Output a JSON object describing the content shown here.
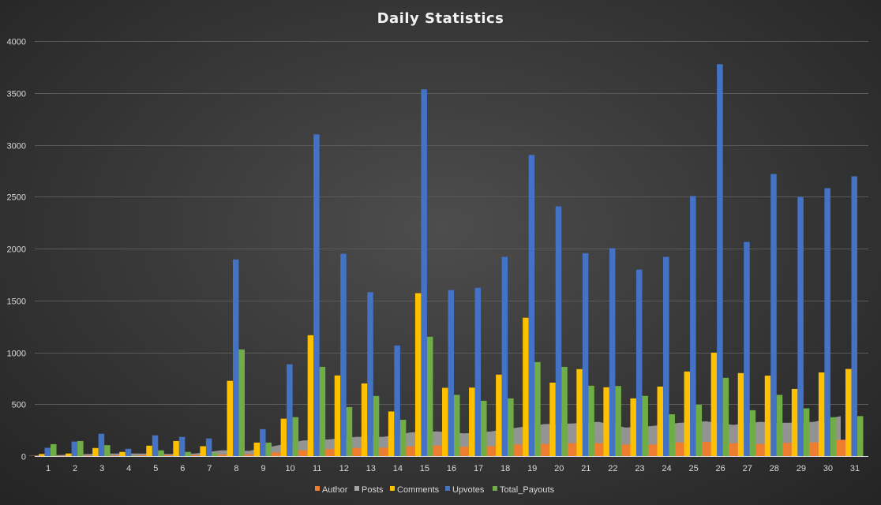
{
  "chart_data": {
    "type": "bar",
    "title": "Daily Statistics",
    "xlabel": "",
    "ylabel": "",
    "ylim": [
      0,
      4000
    ],
    "yticks": [
      "0",
      "500",
      "1000",
      "1500",
      "2000",
      "2500",
      "3000",
      "3500",
      "4000"
    ],
    "grid": true,
    "legend_position": "bottom",
    "categories": [
      "1",
      "2",
      "3",
      "4",
      "5",
      "6",
      "7",
      "8",
      "9",
      "10",
      "11",
      "12",
      "13",
      "14",
      "15",
      "16",
      "17",
      "18",
      "19",
      "20",
      "21",
      "22",
      "23",
      "24",
      "25",
      "26",
      "27",
      "28",
      "29",
      "30",
      "31"
    ],
    "series": [
      {
        "name": "Author",
        "color": "#ed7d31",
        "kind": "bar",
        "values": [
          3,
          4,
          5,
          6,
          8,
          10,
          10,
          15,
          17,
          36,
          56,
          68,
          79,
          81,
          94,
          102,
          91,
          96,
          112,
          117,
          124,
          124,
          112,
          112,
          132,
          137,
          124,
          117,
          128,
          132,
          157
        ]
      },
      {
        "name": "Posts",
        "color": "#a5a5a5",
        "kind": "area",
        "values": [
          5,
          10,
          20,
          25,
          25,
          20,
          25,
          56,
          50,
          100,
          150,
          162,
          185,
          185,
          228,
          238,
          219,
          238,
          276,
          309,
          314,
          330,
          275,
          290,
          320,
          335,
          300,
          330,
          320,
          330,
          385
        ]
      },
      {
        "name": "Comments",
        "color": "#ffc000",
        "kind": "bar",
        "values": [
          20,
          25,
          78,
          40,
          100,
          145,
          95,
          725,
          130,
          360,
          1165,
          777,
          700,
          430,
          1570,
          658,
          660,
          785,
          1333,
          708,
          838,
          663,
          556,
          670,
          815,
          997,
          800,
          775,
          647,
          806,
          840
        ]
      },
      {
        "name": "Upvotes",
        "color": "#4472c4",
        "kind": "bar",
        "values": [
          80,
          140,
          215,
          70,
          200,
          185,
          170,
          1895,
          260,
          885,
          3100,
          1950,
          1580,
          1066,
          3534,
          1600,
          1622,
          1920,
          2902,
          2407,
          1955,
          2003,
          1797,
          1920,
          2506,
          3777,
          2064,
          2719,
          2498,
          2582,
          2696
        ]
      },
      {
        "name": "Total_Payouts",
        "color": "#70ad47",
        "kind": "bar",
        "values": [
          115,
          145,
          105,
          5,
          55,
          40,
          30,
          1028,
          130,
          375,
          860,
          472,
          579,
          350,
          1150,
          590,
          533,
          556,
          906,
          860,
          678,
          675,
          580,
          403,
          495,
          754,
          442,
          590,
          460,
          375,
          385
        ]
      }
    ]
  }
}
